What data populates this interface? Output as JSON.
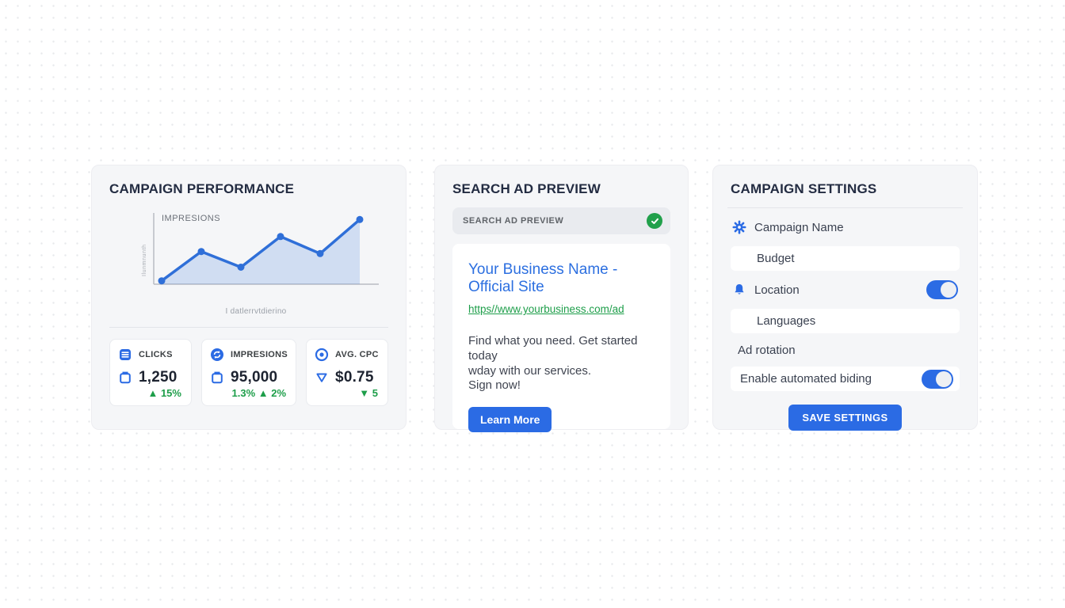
{
  "colors": {
    "accent_blue": "#2b6be4",
    "chart_blue": "#2f6fd8",
    "green": "#1e9e4a",
    "check_green": "#21a04b",
    "title_navy": "#232c42"
  },
  "icons": {
    "stat_clicks": "list-icon",
    "stat_impressions": "sync-icon",
    "stat_avg_cpc": "target-icon",
    "stat_value_clicks": "clipboard-icon",
    "stat_value_impressions": "clipboard-icon",
    "stat_value_cpc": "triangle-down-icon",
    "preview_status": "check-circle-icon",
    "campaign_name": "gear-icon",
    "location": "bell-icon"
  },
  "performance_card": {
    "title": "CAMPAIGN PERFORMANCE",
    "stats": [
      {
        "label": "CLICKS",
        "value": "1,250",
        "change": "▲ 15%"
      },
      {
        "label": "IMPRESIONS",
        "value": "95,000",
        "change": "1.3% ▲ 2%"
      },
      {
        "label": "AVG. CPC",
        "value": "$0.75",
        "change": "▼ 5"
      }
    ]
  },
  "ad_preview_card": {
    "title": "SEARCH AD PREVIEW",
    "bar_label": "SEARCH AD PREVIEW",
    "headline": "Your Business Name - Official Site",
    "display_url": "https//www.yourbusiness.com/ad",
    "description_line1": "Find what you need. Get started today",
    "description_line2": "wday with our services.",
    "description_line3": "Sign now!",
    "cta_label": "Learn More"
  },
  "settings_card": {
    "title": "CAMPAIGN SETTINGS",
    "campaign_name_label": "Campaign Name",
    "budget_value": "Budget",
    "location_label": "Location",
    "location_toggle_on": true,
    "languages_value": "Languages",
    "ad_rotation_label": "Ad rotation",
    "bidding_label": "Enable automated biding",
    "bidding_toggle_on": true,
    "save_button_label": "SAVE SETTINGS"
  },
  "chart_data": {
    "type": "line",
    "title": "IMPRESIONS",
    "x": [
      1,
      2,
      3,
      4,
      5,
      6
    ],
    "values": [
      5,
      48,
      25,
      70,
      45,
      95
    ],
    "ylim": [
      0,
      100
    ],
    "xlabel": "I datlerrvtdierino",
    "ylabel": "Ilunmnunth",
    "legend": "none",
    "grid": false,
    "area": true,
    "line_color": "#2f6fd8",
    "fill_color": "rgba(47,111,216,0.18)",
    "point_color": "#2f6fd8"
  }
}
